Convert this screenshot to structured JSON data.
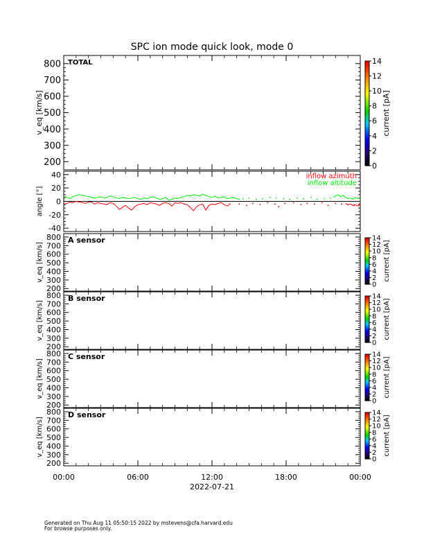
{
  "title": "SPC ion mode quick look, mode 0",
  "footer": {
    "line1": "Generated on Thu Aug 11 05:50:15 2022 by mstevens@cfa.harvard.edu",
    "line2": "For browse purposes only."
  },
  "chart_data": [
    {
      "type": "heatmap",
      "panel": "TOTAL",
      "label": "TOTAL",
      "ylabel": "v_eq [km/s]",
      "ylim": [
        150,
        850
      ],
      "yticks": [
        200,
        300,
        400,
        500,
        600,
        700,
        800
      ],
      "colorbar": {
        "label": "current [pA]",
        "range": [
          0,
          14
        ],
        "ticks": [
          0,
          2,
          4,
          6,
          8,
          10,
          12,
          14
        ]
      },
      "values": []
    },
    {
      "type": "line",
      "panel": "angle",
      "ylabel": "angle [°]",
      "ylim": [
        -45,
        45
      ],
      "yticks": [
        -40,
        -20,
        0,
        20,
        40
      ],
      "zero_line": true,
      "series": [
        {
          "name": "inflow azimuth",
          "color": "#ff0000",
          "x": [
            0.0,
            0.25,
            0.5,
            0.75,
            1.0,
            1.25,
            1.5,
            1.75,
            2.0,
            2.25,
            2.5,
            2.75,
            3.0,
            3.25,
            3.5,
            3.75,
            4.0,
            4.25,
            4.5,
            4.75,
            5.0,
            5.25,
            5.5,
            5.75,
            6.0,
            6.25,
            6.5,
            6.75,
            7.0,
            7.25,
            7.5,
            7.75,
            8.0,
            8.25,
            8.5,
            8.75,
            9.0,
            9.25,
            9.5,
            9.75,
            10.0,
            10.25,
            10.5,
            10.75,
            11.0,
            11.25,
            11.5,
            11.75,
            12.0,
            12.25,
            12.5,
            12.75,
            13.0,
            13.25,
            13.5
          ],
          "values": [
            -4,
            -3,
            -1,
            -2,
            0,
            -1,
            -2,
            -3,
            -1,
            -1,
            -4,
            -2,
            -3,
            -4,
            -5,
            -2,
            -3,
            -7,
            -12,
            -9,
            -6,
            -10,
            -13,
            -8,
            -5,
            -4,
            -3,
            -5,
            -2,
            -3,
            -4,
            -6,
            -3,
            -2,
            -3,
            -7,
            -2,
            -3,
            -2,
            -4,
            -5,
            -9,
            -14,
            -8,
            -5,
            -4,
            -13,
            -6,
            -4,
            -5,
            -3,
            -2,
            -5,
            -7,
            -3
          ],
          "sparse": {
            "x": [
              14.2,
              14.8,
              15.3,
              15.9,
              16.5,
              17.1,
              17.4,
              17.9,
              18.6,
              19.2,
              19.7,
              20.3,
              20.9,
              21.4,
              22.0,
              22.5,
              23.0,
              23.5,
              23.9
            ],
            "values": [
              -4,
              -6,
              -3,
              -5,
              -2,
              -4,
              -8,
              -3,
              -2,
              -5,
              -3,
              -4,
              -2,
              -6,
              -3,
              -4,
              -5,
              -6,
              -4
            ]
          },
          "tail": {
            "x": [
              22.8,
              23.0,
              23.2,
              23.4,
              23.6,
              23.8,
              24.0
            ],
            "values": [
              -3,
              -5,
              -4,
              -6,
              -5,
              -7,
              -4
            ]
          }
        },
        {
          "name": "inflow altitude",
          "color": "#00ee00",
          "x": [
            0.0,
            0.25,
            0.5,
            0.75,
            1.0,
            1.25,
            1.5,
            1.75,
            2.0,
            2.25,
            2.5,
            2.75,
            3.0,
            3.25,
            3.5,
            3.75,
            4.0,
            4.25,
            4.5,
            4.75,
            5.0,
            5.25,
            5.5,
            5.75,
            6.0,
            6.25,
            6.5,
            6.75,
            7.0,
            7.25,
            7.5,
            7.75,
            8.0,
            8.25,
            8.5,
            8.75,
            9.0,
            9.25,
            9.5,
            9.75,
            10.0,
            10.25,
            10.5,
            10.75,
            11.0,
            11.25,
            11.5,
            11.75,
            12.0,
            12.25,
            12.5,
            12.75,
            13.0,
            13.25,
            13.5,
            13.75,
            14.0,
            14.25
          ],
          "values": [
            8,
            6,
            4,
            7,
            9,
            10,
            9,
            8,
            7,
            6,
            5,
            6,
            7,
            5,
            6,
            8,
            7,
            5,
            4,
            6,
            5,
            4,
            5,
            6,
            4,
            3,
            5,
            4,
            6,
            7,
            5,
            3,
            4,
            6,
            2,
            3,
            5,
            4,
            6,
            7,
            9,
            8,
            10,
            9,
            8,
            11,
            9,
            7,
            6,
            8,
            5,
            6,
            7,
            4,
            5,
            6,
            4,
            3
          ],
          "sparse": {
            "x": [
              14.5,
              15.0,
              15.6,
              16.1,
              16.7,
              17.2,
              17.8,
              18.3,
              18.9,
              19.4,
              20.0,
              20.5,
              21.1,
              21.6
            ],
            "values": [
              4,
              5,
              3,
              4,
              6,
              5,
              4,
              3,
              5,
              4,
              6,
              3,
              4,
              5
            ]
          },
          "tail": {
            "x": [
              21.8,
              22.0,
              22.2,
              22.4,
              22.6,
              22.8,
              23.0,
              23.2,
              23.4,
              23.6,
              23.8,
              24.0
            ],
            "values": [
              6,
              8,
              10,
              7,
              9,
              6,
              4,
              5,
              3,
              6,
              4,
              5
            ]
          }
        }
      ]
    },
    {
      "type": "heatmap",
      "panel": "A",
      "label": "A sensor",
      "ylabel": "v_eq [km/s]",
      "ylim": [
        170,
        840
      ],
      "yticks": [
        200,
        300,
        400,
        500,
        600,
        700,
        800
      ],
      "colorbar": {
        "label": "current [pA]",
        "range": [
          0,
          14
        ],
        "ticks": [
          0,
          2,
          4,
          6,
          8,
          10,
          12,
          14
        ]
      },
      "values": []
    },
    {
      "type": "heatmap",
      "panel": "B",
      "label": "B sensor",
      "ylabel": "v_eq [km/s]",
      "ylim": [
        170,
        840
      ],
      "yticks": [
        200,
        300,
        400,
        500,
        600,
        700,
        800
      ],
      "colorbar": {
        "label": "current [pA]",
        "range": [
          0,
          14
        ],
        "ticks": [
          0,
          2,
          4,
          6,
          8,
          10,
          12,
          14
        ]
      },
      "values": []
    },
    {
      "type": "heatmap",
      "panel": "C",
      "label": "C sensor",
      "ylabel": "v_eq [km/s]",
      "ylim": [
        170,
        840
      ],
      "yticks": [
        200,
        300,
        400,
        500,
        600,
        700,
        800
      ],
      "colorbar": {
        "label": "current [pA]",
        "range": [
          0,
          14
        ],
        "ticks": [
          0,
          2,
          4,
          6,
          8,
          10,
          12,
          14
        ]
      },
      "values": []
    },
    {
      "type": "heatmap",
      "panel": "D",
      "label": "D sensor",
      "ylabel": "v_eq [km/s]",
      "ylim": [
        170,
        840
      ],
      "yticks": [
        200,
        300,
        400,
        500,
        600,
        700,
        800
      ],
      "colorbar": {
        "label": "current [pA]",
        "range": [
          0,
          14
        ],
        "ticks": [
          0,
          2,
          4,
          6,
          8,
          10,
          12,
          14
        ]
      },
      "values": []
    }
  ],
  "xaxis": {
    "range_hours": [
      0,
      24
    ],
    "ticks": [
      0,
      6,
      12,
      18,
      24
    ],
    "tick_labels": [
      "00:00",
      "06:00",
      "12:00",
      "18:00",
      "00:00"
    ],
    "date_label": "2022-07-21"
  }
}
